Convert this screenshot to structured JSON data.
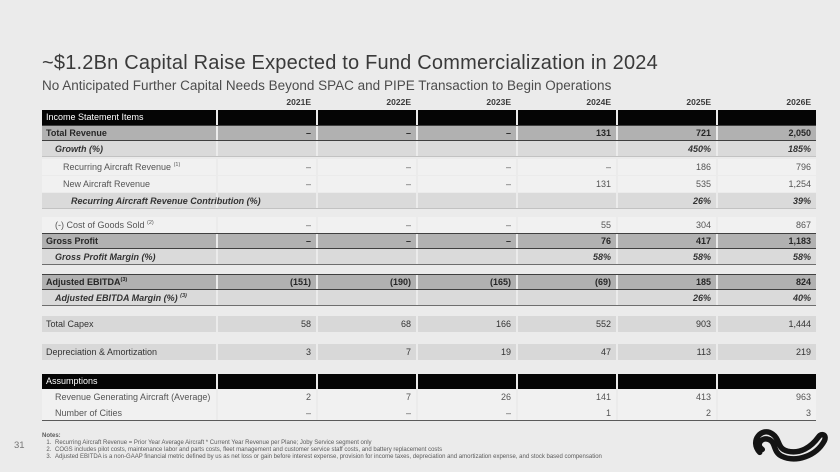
{
  "page_number": "31",
  "header": {
    "title": "~$1.2Bn Capital Raise Expected to Fund Commercialization in 2024",
    "subtitle": "No Anticipated Further Capital Needs Beyond SPAC and PIPE Transaction to Begin Operations"
  },
  "table": {
    "columns": [
      "2021E",
      "2022E",
      "2023E",
      "2024E",
      "2025E",
      "2026E"
    ],
    "rows": [
      {
        "label": "Income Statement Items",
        "style": "section",
        "indent": 0,
        "values": [
          "",
          "",
          "",
          "",
          "",
          ""
        ]
      },
      {
        "label": "Total Revenue",
        "style": "total",
        "indent": 0,
        "values": [
          "–",
          "–",
          "–",
          "131",
          "721",
          "2,050"
        ]
      },
      {
        "label": "Growth (%)",
        "style": "itl",
        "indent": 1,
        "values": [
          "",
          "",
          "",
          "",
          "450%",
          "185%"
        ]
      },
      {
        "label": "Recurring Aircraft Revenue ",
        "sup": "(1)",
        "style": "light",
        "indent": 2,
        "values": [
          "–",
          "–",
          "–",
          "–",
          "186",
          "796"
        ]
      },
      {
        "label": "New Aircraft Revenue",
        "style": "light",
        "indent": 2,
        "values": [
          "–",
          "–",
          "–",
          "131",
          "535",
          "1,254"
        ]
      },
      {
        "label": "Recurring Aircraft Revenue Contribution (%)",
        "style": "itl",
        "indent": 3,
        "values": [
          "",
          "",
          "",
          "",
          "26%",
          "39%"
        ]
      },
      {
        "label": "(-) Cost of Goods Sold ",
        "sup": "(2)",
        "style": "light",
        "indent": 1,
        "values": [
          "–",
          "–",
          "–",
          "55",
          "304",
          "867"
        ]
      },
      {
        "label": "Gross Profit",
        "style": "total",
        "indent": 0,
        "values": [
          "–",
          "–",
          "–",
          "76",
          "417",
          "1,183"
        ]
      },
      {
        "label": "Gross Profit Margin (%)",
        "style": "itl-u",
        "indent": 1,
        "values": [
          "",
          "",
          "",
          "58%",
          "58%",
          "58%"
        ]
      },
      {
        "label": "Adjusted EBITDA",
        "sup": "(3)",
        "style": "total",
        "indent": 0,
        "values": [
          "(151)",
          "(190)",
          "(165)",
          "(69)",
          "185",
          "824"
        ]
      },
      {
        "label": "Adjusted EBITDA Margin (%) ",
        "sup": "(3)",
        "style": "itl-u",
        "indent": 1,
        "values": [
          "",
          "",
          "",
          "",
          "26%",
          "40%"
        ]
      },
      {
        "label": "Total Capex",
        "style": "mid",
        "indent": 0,
        "values": [
          "58",
          "68",
          "166",
          "552",
          "903",
          "1,444"
        ]
      },
      {
        "label": "Depreciation & Amortization",
        "style": "mid",
        "indent": 0,
        "values": [
          "3",
          "7",
          "19",
          "47",
          "113",
          "219"
        ]
      },
      {
        "label": "Assumptions",
        "style": "section",
        "indent": 0,
        "values": [
          "",
          "",
          "",
          "",
          "",
          ""
        ]
      },
      {
        "label": "Revenue Generating Aircraft (Average)",
        "style": "light",
        "indent": 1,
        "values": [
          "2",
          "7",
          "26",
          "141",
          "413",
          "963"
        ]
      },
      {
        "label": "Number of Cities",
        "style": "light-u",
        "indent": 1,
        "values": [
          "–",
          "–",
          "–",
          "1",
          "2",
          "3"
        ]
      }
    ]
  },
  "notes": {
    "heading": "Notes:",
    "items": [
      "Recurring Aircraft Revenue = Prior Year Average Aircraft * Current Year Revenue per Plane; Joby Service segment only",
      "COGS includes pilot costs, maintenance labor and parts costs, fleet management and customer service staff costs, and battery replacement costs",
      "Adjusted EBITDA is a non-GAAP financial metric defined by us as net loss or gain before interest expense, provision for income taxes, depreciation and amortization expense, and stock based compensation"
    ]
  },
  "logo": {
    "name": "joby-bird-mark",
    "color": "#141414"
  },
  "colors": {
    "background": "#ebebeb",
    "section_bar": "#050505",
    "total_row": "#b1b1b1",
    "italic_row": "#dadada",
    "light_row": "#f1f1f1",
    "mid_row": "#d8d8d8",
    "title_text": "#3a3a3a"
  }
}
